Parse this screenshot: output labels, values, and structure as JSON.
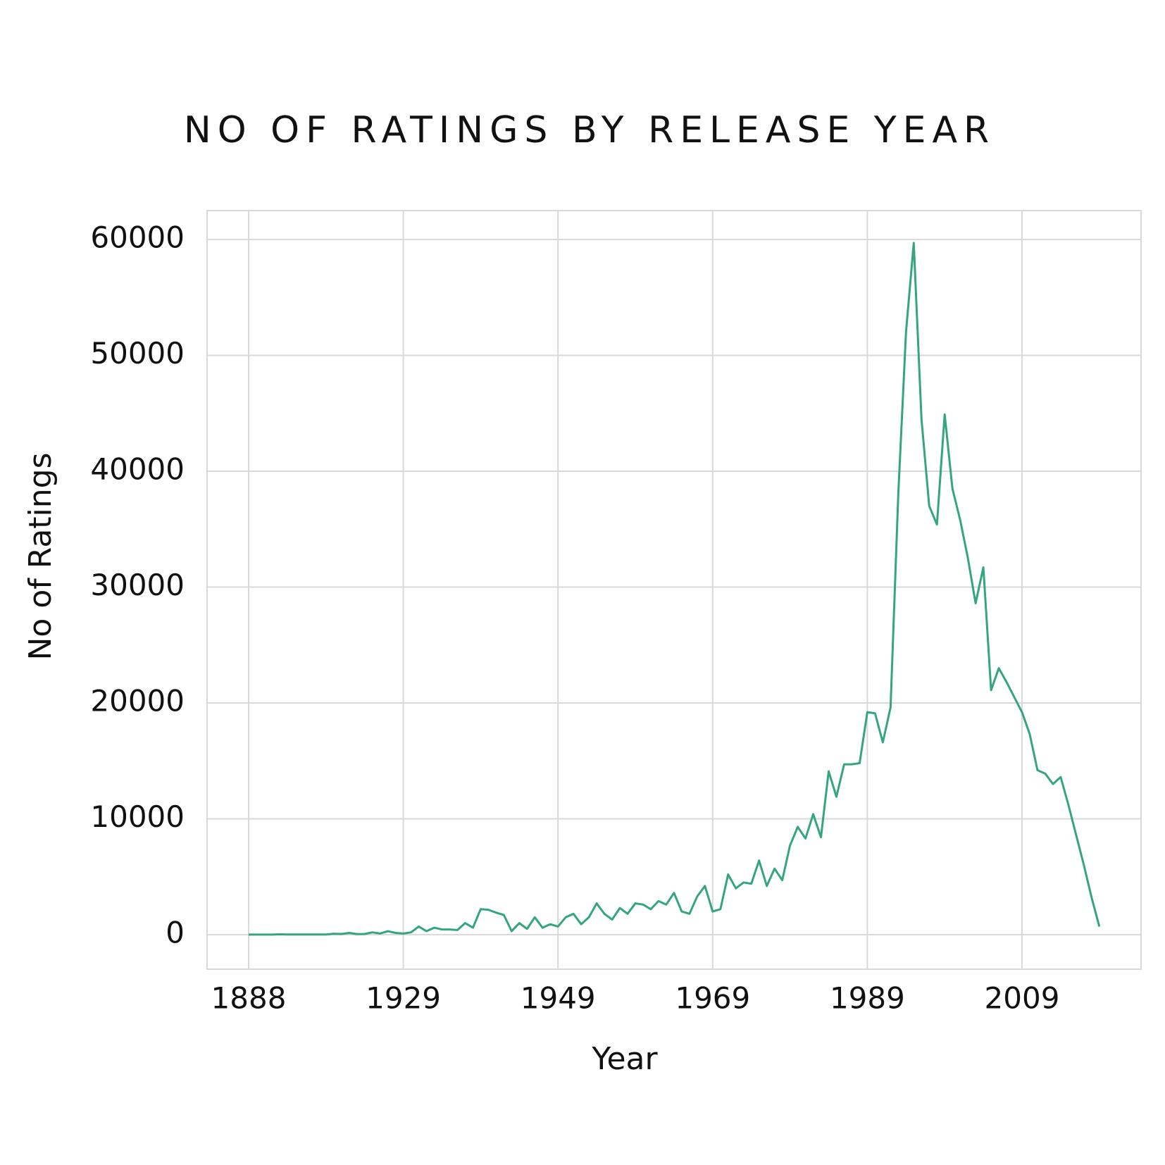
{
  "chart_data": {
    "type": "line",
    "title": "NO OF RATINGS BY RELEASE YEAR",
    "x_label": "Year",
    "y_label": "No of Ratings",
    "categories": [
      "1888",
      null,
      null,
      null,
      null,
      null,
      null,
      null,
      null,
      null,
      null,
      null,
      null,
      null,
      null,
      null,
      null,
      null,
      null,
      null,
      "1929",
      null,
      null,
      null,
      null,
      null,
      null,
      null,
      null,
      null,
      null,
      null,
      null,
      null,
      null,
      null,
      null,
      null,
      null,
      null,
      "1949",
      null,
      null,
      null,
      null,
      null,
      null,
      null,
      null,
      null,
      null,
      null,
      null,
      null,
      null,
      null,
      null,
      null,
      null,
      null,
      "1969",
      null,
      null,
      null,
      null,
      null,
      null,
      null,
      null,
      null,
      null,
      null,
      null,
      null,
      null,
      null,
      null,
      null,
      null,
      null,
      "1989",
      null,
      null,
      null,
      null,
      null,
      null,
      null,
      null,
      null,
      null,
      null,
      null,
      null,
      null,
      null,
      null,
      null,
      null,
      null,
      "2009",
      null,
      null,
      null,
      null,
      null,
      null,
      null,
      null,
      null,
      null
    ],
    "series": [
      {
        "name": "No of Ratings",
        "color": "#35a57f",
        "values": [
          5,
          5,
          5,
          5,
          30,
          10,
          10,
          10,
          10,
          10,
          10,
          80,
          60,
          150,
          50,
          60,
          200,
          100,
          300,
          150,
          100,
          200,
          700,
          300,
          600,
          450,
          450,
          400,
          1000,
          600,
          2200,
          2150,
          1900,
          1700,
          300,
          1000,
          500,
          1500,
          600,
          900,
          700,
          1500,
          1800,
          900,
          1500,
          2700,
          1800,
          1300,
          2300,
          1800,
          2700,
          2600,
          2200,
          2900,
          2600,
          3600,
          2000,
          1800,
          3300,
          4200,
          2000,
          2200,
          5200,
          4000,
          4500,
          4400,
          6400,
          4200,
          5700,
          4700,
          7700,
          9300,
          8300,
          10400,
          8400,
          14100,
          11900,
          14700,
          14700,
          14800,
          19200,
          19100,
          16600,
          19600,
          38000,
          52000,
          59700,
          44500,
          37000,
          35400,
          44900,
          38500,
          35800,
          32500,
          28600,
          31700,
          21100,
          23000,
          21800,
          20500,
          19200,
          17300,
          14200,
          13900,
          13000,
          13600,
          11200,
          8600,
          6000,
          3200,
          700
        ]
      }
    ],
    "ylim": [
      -2980,
      62490
    ],
    "yticks": [
      0,
      10000,
      20000,
      30000,
      40000,
      50000,
      60000
    ],
    "grid": true
  }
}
